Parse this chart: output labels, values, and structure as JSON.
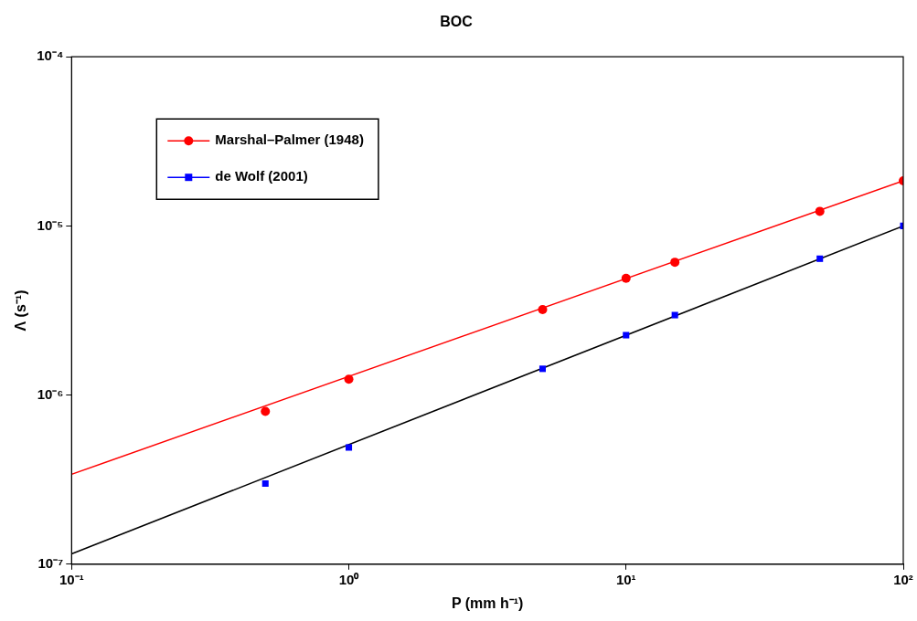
{
  "chart_data": {
    "type": "scatter",
    "title": "BOC",
    "xlabel": "P (mm h⁻¹)",
    "ylabel": "Λ (s⁻¹)",
    "log": "xy",
    "grid": false,
    "legend": "top left",
    "xlim": [
      0.1,
      100
    ],
    "ylim": [
      1e-07,
      0.0001
    ],
    "xticks": [
      {
        "value": 0.1,
        "label": "10⁻¹"
      },
      {
        "value": 1,
        "label": "10⁰"
      },
      {
        "value": 10,
        "label": "10¹"
      },
      {
        "value": 100,
        "label": "10²"
      }
    ],
    "yticks": [
      {
        "value": 1e-07,
        "label": "10⁻⁷"
      },
      {
        "value": 1e-06,
        "label": "10⁻⁶"
      },
      {
        "value": 1e-05,
        "label": "10⁻⁵"
      },
      {
        "value": 0.0001,
        "label": "10⁻⁴"
      }
    ],
    "series": [
      {
        "type": "line",
        "color": "#ff0000",
        "marker": "none",
        "x": [
          0.1,
          100
        ],
        "values": [
          3.4e-07,
          1.85e-05
        ]
      },
      {
        "type": "line",
        "color": "#000000",
        "marker": "none",
        "x": [
          0.1,
          100
        ],
        "values": [
          1.15e-07,
          1e-05
        ]
      },
      {
        "name": "Marshal–Palmer (1948)",
        "type": "scatter",
        "color": "#ff0000",
        "marker": "circle",
        "x": [
          0.5,
          1,
          5,
          10,
          15,
          50,
          100
        ],
        "values": [
          8e-07,
          1.24e-06,
          3.2e-06,
          4.9e-06,
          6.1e-06,
          1.22e-05,
          1.85e-05
        ]
      },
      {
        "name": "de Wolf (2001)",
        "type": "scatter",
        "color": "#0000ff",
        "marker": "square",
        "x": [
          0.5,
          1,
          5,
          10,
          15,
          50,
          100
        ],
        "values": [
          3e-07,
          4.9e-07,
          1.43e-06,
          2.26e-06,
          2.97e-06,
          6.4e-06,
          1e-05
        ]
      }
    ]
  }
}
